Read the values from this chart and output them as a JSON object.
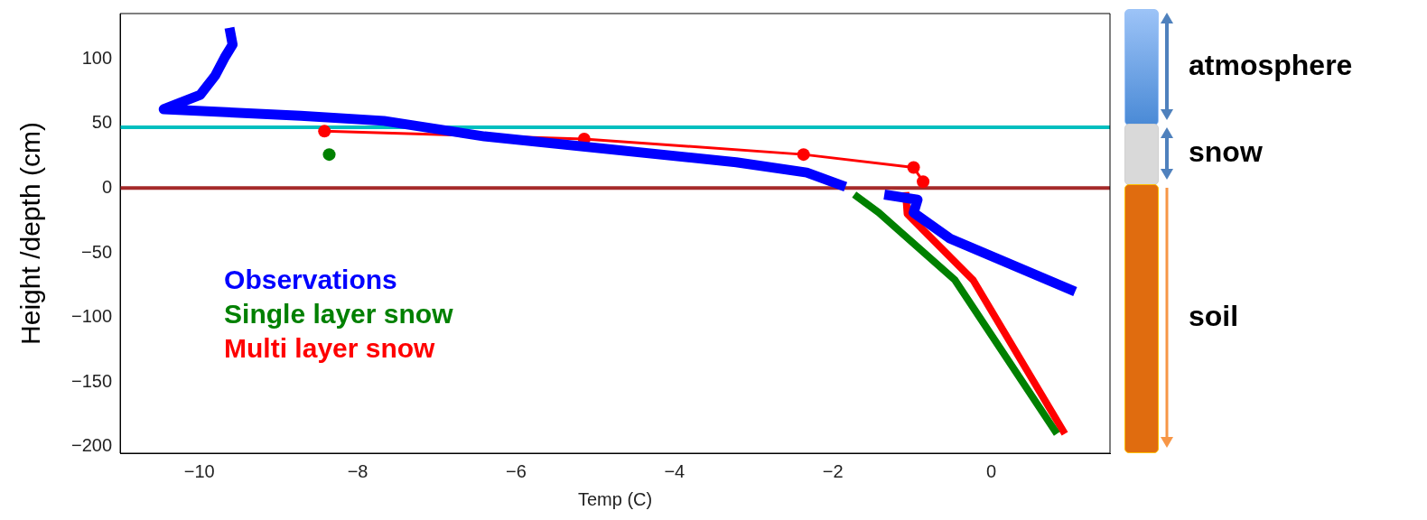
{
  "chart_data": {
    "type": "line",
    "xlabel": "Temp (C)",
    "ylabel": "Height /depth (cm)",
    "xlim": [
      -11,
      1.5
    ],
    "xticks": [
      -10,
      -8,
      -6,
      -4,
      -2,
      0
    ],
    "ylim": [
      -205,
      135
    ],
    "yticks": [
      -200,
      -150,
      -100,
      -50,
      0,
      50,
      100
    ],
    "grid": false,
    "legend": "bottom left",
    "series": [
      {
        "name": "Observations",
        "marker": "none",
        "color": "#0000ff",
        "x": [
          -9.62,
          -9.58,
          -9.68,
          -9.8,
          -9.99,
          -10.45,
          -8.72,
          -7.67,
          -6.4,
          -3.22,
          -2.33,
          -1.84,
          -1.6,
          -1.35,
          -0.93,
          -0.98,
          -0.52,
          1.06
        ],
        "values": [
          124,
          111,
          101,
          87,
          72,
          61,
          56,
          52,
          40,
          20,
          12,
          1,
          null,
          -5,
          -9,
          -19,
          -39,
          -80
        ]
      },
      {
        "name": "Single layer snow",
        "marker": "none",
        "color": "#008000",
        "x": [
          -1.73,
          -1.42,
          -0.46,
          0.83
        ],
        "values": [
          -5,
          -19,
          -71,
          -190
        ]
      },
      {
        "type": "scatter",
        "marker": "circle",
        "color": "#008000",
        "x": [
          -8.36
        ],
        "values": [
          26
        ]
      },
      {
        "name": "Multi layer snow",
        "marker": "none",
        "color": "#ff0000",
        "x": [
          -1.08,
          -1.06,
          -0.23,
          0.93
        ],
        "values": [
          -3,
          -20,
          -71,
          -190
        ]
      },
      {
        "marker": "circle",
        "color": "#ff0000",
        "x": [
          -8.42,
          -5.14,
          -2.37,
          -0.98,
          -0.86
        ],
        "values": [
          44,
          38,
          26,
          16,
          5
        ]
      }
    ],
    "ref_lines": [
      {
        "axis": "y",
        "value": 47,
        "color": "#00bfbf"
      },
      {
        "axis": "y",
        "value": 0,
        "color": "#a52a2a"
      }
    ],
    "annotations": [
      "atmosphere",
      "snow",
      "soil"
    ]
  }
}
